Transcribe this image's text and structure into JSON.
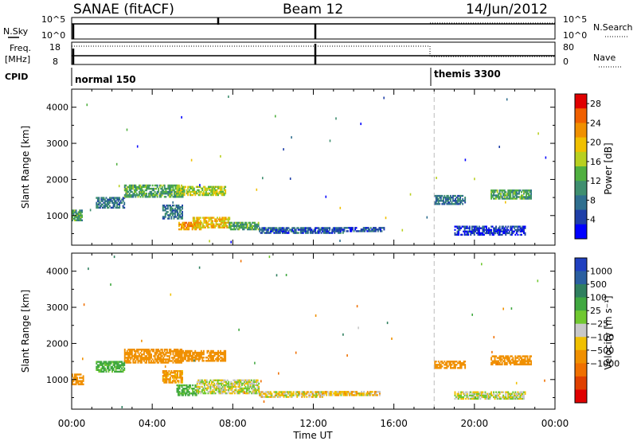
{
  "header": {
    "station": "SANAE (fitACF)",
    "beam": "Beam 12",
    "date": "14/Jun/2012"
  },
  "strips": {
    "nsky_label": "N.Sky",
    "nsky_ticks": [
      "10^5",
      "10^0"
    ],
    "nsearch_label": "N.Search",
    "nsearch_ticks": [
      "10^5",
      "10^0"
    ],
    "freq_label": "Freq.",
    "freq_unit": "[MHz]",
    "freq_ticks": [
      "18",
      "8"
    ],
    "nave_label": "Nave",
    "nave_ticks": [
      "80",
      "0"
    ],
    "cpid_label": "CPID",
    "cpid_segments": [
      {
        "name": "normal 150",
        "start_hour": 0,
        "end_hour": 18
      },
      {
        "name": "themis 3300",
        "start_hour": 18,
        "end_hour": 24
      }
    ]
  },
  "colors": {
    "power_scale": [
      "#0000ff",
      "#1f3fa8",
      "#2f6f8f",
      "#3f8f6f",
      "#50b040",
      "#b8d020",
      "#f0c000",
      "#f09000",
      "#f06000",
      "#e00000"
    ],
    "velocity_scale": [
      "#2040c0",
      "#2a5fa0",
      "#2f7f5f",
      "#40a840",
      "#70c830",
      "#c8c8c8",
      "#f0c000",
      "#f09000",
      "#f07000",
      "#e04000",
      "#e00000"
    ],
    "ground_scatter": "#c0c0c0"
  },
  "chart_data": [
    {
      "type": "heatmap",
      "parameter": "power",
      "ylabel": "Slant Range [km]",
      "ylim": [
        180,
        4500
      ],
      "xlim_hours": [
        0,
        24
      ],
      "yticks": [
        1000,
        2000,
        3000,
        4000
      ],
      "colorbar_label": "Power [dB]",
      "colorbar_ticks": [
        "4",
        "8",
        "12",
        "16",
        "20",
        "24",
        "28"
      ],
      "colorbar_range": [
        0,
        30
      ],
      "regions": [
        {
          "t0": 0.0,
          "t1": 0.5,
          "r0": 850,
          "r1": 1150,
          "level": 12
        },
        {
          "t0": 1.2,
          "t1": 2.6,
          "r0": 1200,
          "r1": 1500,
          "level": 8
        },
        {
          "t0": 2.6,
          "t1": 5.5,
          "r0": 1500,
          "r1": 1850,
          "level": 12
        },
        {
          "t0": 5.2,
          "t1": 7.6,
          "r0": 1550,
          "r1": 1800,
          "level": 16
        },
        {
          "t0": 4.5,
          "t1": 5.5,
          "r0": 900,
          "r1": 1300,
          "level": 8
        },
        {
          "t0": 5.3,
          "t1": 6.4,
          "r0": 600,
          "r1": 800,
          "level": 22
        },
        {
          "t0": 6.0,
          "t1": 7.8,
          "r0": 650,
          "r1": 950,
          "level": 20
        },
        {
          "t0": 7.8,
          "t1": 9.3,
          "r0": 600,
          "r1": 800,
          "level": 12
        },
        {
          "t0": 9.3,
          "t1": 13.5,
          "r0": 500,
          "r1": 650,
          "level": 6
        },
        {
          "t0": 13.5,
          "t1": 15.5,
          "r0": 550,
          "r1": 650,
          "level": 6
        },
        {
          "t0": 18.0,
          "t1": 19.5,
          "r0": 1300,
          "r1": 1550,
          "level": 8
        },
        {
          "t0": 20.8,
          "t1": 22.8,
          "r0": 1450,
          "r1": 1700,
          "level": 12
        },
        {
          "t0": 19.0,
          "t1": 22.5,
          "r0": 450,
          "r1": 700,
          "level": 4
        }
      ]
    },
    {
      "type": "heatmap",
      "parameter": "velocity",
      "xlabel": "Time UT",
      "ylabel": "Slant Range [km]",
      "ylim": [
        180,
        4500
      ],
      "xlim_hours": [
        0,
        24
      ],
      "yticks": [
        1000,
        2000,
        3000,
        4000
      ],
      "xticks": [
        "00:00",
        "04:00",
        "08:00",
        "12:00",
        "16:00",
        "20:00",
        "00:00"
      ],
      "colorbar_label": "Velocity [m s⁻¹]",
      "colorbar_ticks": [
        "1000",
        "500",
        "100",
        "25",
        "−25",
        "−100",
        "−500",
        "−1000"
      ],
      "regions": [
        {
          "t0": 0.0,
          "t1": 0.6,
          "r0": 850,
          "r1": 1150,
          "velocity": -300
        },
        {
          "t0": 1.2,
          "t1": 2.6,
          "r0": 1200,
          "r1": 1500,
          "velocity": 150
        },
        {
          "t0": 2.6,
          "t1": 5.5,
          "r0": 1450,
          "r1": 1850,
          "velocity": -300
        },
        {
          "t0": 5.2,
          "t1": 7.6,
          "r0": 1500,
          "r1": 1800,
          "velocity": -200
        },
        {
          "t0": 4.5,
          "t1": 5.5,
          "r0": 900,
          "r1": 1250,
          "velocity": -150
        },
        {
          "t0": 5.2,
          "t1": 6.2,
          "r0": 550,
          "r1": 850,
          "velocity": 150
        },
        {
          "t0": 6.2,
          "t1": 9.3,
          "r0": 600,
          "r1": 1000,
          "velocity": 0
        },
        {
          "t0": 9.3,
          "t1": 12.5,
          "r0": 500,
          "r1": 650,
          "velocity": -40
        },
        {
          "t0": 12.5,
          "t1": 15.3,
          "r0": 550,
          "r1": 650,
          "velocity": -60
        },
        {
          "t0": 18.0,
          "t1": 19.5,
          "r0": 1300,
          "r1": 1500,
          "velocity": -300
        },
        {
          "t0": 20.8,
          "t1": 22.8,
          "r0": 1400,
          "r1": 1650,
          "velocity": -300
        },
        {
          "t0": 19.0,
          "t1": 22.5,
          "r0": 450,
          "r1": 650,
          "velocity": 0
        }
      ]
    }
  ]
}
